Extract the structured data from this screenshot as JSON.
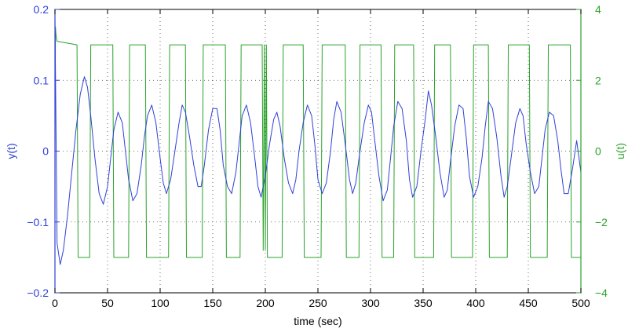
{
  "chart_data": {
    "type": "line",
    "xlabel": "time (sec)",
    "ylabel_left": "y(t)",
    "ylabel_right": "u(t)",
    "xlim": [
      0,
      500
    ],
    "ylim_left": [
      -0.2,
      0.2
    ],
    "ylim_right": [
      -4,
      4
    ],
    "grid": true,
    "x_ticks": [
      0,
      50,
      100,
      150,
      200,
      250,
      300,
      350,
      400,
      450,
      500
    ],
    "x_tick_labels": [
      "0",
      "50",
      "100",
      "150",
      "200",
      "250",
      "300",
      "350",
      "400",
      "450",
      "500"
    ],
    "y_left_ticks": [
      -0.2,
      -0.1,
      0,
      0.1,
      0.2
    ],
    "y_left_tick_labels": [
      "−0.2",
      "−0.1",
      "0",
      "0.1",
      "0.2"
    ],
    "y_right_ticks": [
      -4,
      -2,
      0,
      2,
      4
    ],
    "y_right_tick_labels": [
      "−4",
      "−2",
      "0",
      "2",
      "4"
    ],
    "colors": {
      "y": "#3040d8",
      "u": "#2aa22a"
    },
    "series": [
      {
        "axis": "right",
        "x": [
          0,
          0.5,
          1,
          1.5,
          2,
          21,
          22,
          33,
          34,
          55,
          56,
          70,
          71,
          86,
          87,
          108,
          109,
          124,
          125,
          140,
          141,
          162,
          163,
          176,
          177,
          197,
          198,
          199,
          200,
          201,
          202,
          216,
          217,
          236,
          237,
          253,
          254,
          276,
          277,
          289,
          290,
          310,
          311,
          322,
          323,
          341,
          342,
          360,
          361,
          376,
          377,
          397,
          398,
          412,
          413,
          430,
          431,
          451,
          452,
          468,
          469,
          490,
          491,
          500
        ],
        "values": [
          0,
          3.5,
          3.3,
          3.2,
          3.1,
          3.0,
          -3.0,
          -3.0,
          3.0,
          3.0,
          -3.0,
          -3.0,
          3.0,
          3.0,
          -3.0,
          -3.0,
          3.0,
          3.0,
          -3.0,
          -3.0,
          3.0,
          3.0,
          -3.0,
          -3.0,
          3.0,
          3.0,
          -2.8,
          3.0,
          -2.8,
          3.0,
          -3.0,
          -3.0,
          3.0,
          3.0,
          -3.0,
          -3.0,
          3.0,
          3.0,
          -3.0,
          -3.0,
          3.0,
          3.0,
          -3.0,
          -3.0,
          3.0,
          3.0,
          -3.0,
          -3.0,
          3.0,
          3.0,
          -3.0,
          -3.0,
          3.0,
          3.0,
          -3.0,
          -3.0,
          3.0,
          3.0,
          -3.0,
          -3.0,
          3.0,
          3.0,
          -3.0,
          -3.0
        ]
      },
      {
        "axis": "left",
        "x": [
          0,
          2,
          5,
          8,
          12,
          16,
          20,
          24,
          28,
          31,
          34,
          38,
          42,
          46,
          50,
          53,
          56,
          60,
          64,
          67,
          70,
          74,
          78,
          82,
          85,
          88,
          92,
          96,
          100,
          103,
          106,
          110,
          114,
          118,
          121,
          124,
          128,
          132,
          136,
          139,
          142,
          146,
          150,
          154,
          157,
          160,
          164,
          168,
          172,
          175,
          178,
          182,
          186,
          190,
          193,
          196,
          200,
          204,
          208,
          211,
          214,
          218,
          222,
          226,
          229,
          232,
          236,
          240,
          244,
          247,
          250,
          254,
          258,
          262,
          265,
          268,
          272,
          276,
          280,
          283,
          286,
          290,
          294,
          298,
          301,
          304,
          308,
          312,
          316,
          319,
          322,
          326,
          330,
          334,
          337,
          340,
          344,
          348,
          352,
          355,
          358,
          362,
          366,
          370,
          373,
          376,
          380,
          384,
          388,
          391,
          394,
          398,
          402,
          406,
          409,
          412,
          416,
          420,
          424,
          427,
          430,
          434,
          438,
          442,
          445,
          448,
          452,
          456,
          460,
          463,
          466,
          470,
          474,
          478,
          481,
          484,
          488,
          492,
          496,
          500
        ],
        "values": [
          0.19,
          -0.13,
          -0.16,
          -0.14,
          -0.09,
          -0.03,
          0.03,
          0.08,
          0.105,
          0.09,
          0.05,
          -0.01,
          -0.06,
          -0.075,
          -0.05,
          -0.01,
          0.03,
          0.055,
          0.04,
          0.0,
          -0.04,
          -0.07,
          -0.06,
          -0.02,
          0.02,
          0.05,
          0.065,
          0.04,
          -0.01,
          -0.045,
          -0.06,
          -0.04,
          0.0,
          0.04,
          0.065,
          0.055,
          0.02,
          -0.02,
          -0.05,
          -0.05,
          -0.02,
          0.03,
          0.06,
          0.06,
          0.03,
          -0.02,
          -0.05,
          -0.06,
          -0.03,
          0.01,
          0.05,
          0.065,
          0.04,
          -0.01,
          -0.05,
          -0.065,
          -0.035,
          0.01,
          0.045,
          0.055,
          0.035,
          -0.01,
          -0.045,
          -0.06,
          -0.04,
          0.0,
          0.04,
          0.065,
          0.05,
          0.01,
          -0.04,
          -0.06,
          -0.045,
          0.0,
          0.045,
          0.07,
          0.055,
          0.01,
          -0.04,
          -0.06,
          -0.045,
          0.0,
          0.04,
          0.065,
          0.055,
          0.015,
          -0.035,
          -0.07,
          -0.055,
          -0.01,
          0.035,
          0.07,
          0.06,
          0.015,
          -0.04,
          -0.065,
          -0.05,
          0.0,
          0.045,
          0.085,
          0.065,
          0.02,
          -0.03,
          -0.065,
          -0.055,
          -0.015,
          0.035,
          0.065,
          0.06,
          0.02,
          -0.035,
          -0.065,
          -0.05,
          -0.01,
          0.035,
          0.07,
          0.06,
          0.02,
          -0.035,
          -0.065,
          -0.05,
          -0.005,
          0.04,
          0.06,
          0.05,
          0.01,
          -0.03,
          -0.06,
          -0.05,
          -0.01,
          0.03,
          0.055,
          0.05,
          0.015,
          -0.025,
          -0.06,
          -0.06,
          -0.025,
          0.015,
          -0.03
        ]
      }
    ]
  }
}
